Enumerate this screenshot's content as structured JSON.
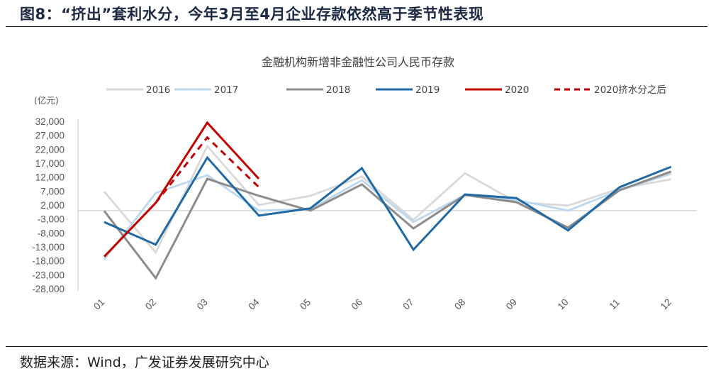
{
  "figure": {
    "title": "图8：“挤出”套利水分，今年3月至4月企业存款依然高于季节性表现",
    "source": "数据来源：Wind，广发证券发展研究中心"
  },
  "chart_data": {
    "type": "line",
    "title": "金融机构新增非金融性公司人民币存款",
    "ylabel": "(亿元)",
    "xlabel": "",
    "categories": [
      "01",
      "02",
      "03",
      "04",
      "05",
      "06",
      "07",
      "08",
      "09",
      "10",
      "11",
      "12"
    ],
    "yticks": [
      32000,
      27000,
      22000,
      17000,
      12000,
      7000,
      2000,
      -3000,
      -8000,
      -13000,
      -18000,
      -23000,
      -28000
    ],
    "ytick_labels": [
      "32,000",
      "27,000",
      "22,000",
      "17,000",
      "12,000",
      "7,000",
      "2,000",
      "-3,000",
      "-8,000",
      "-13,000",
      "-18,000",
      "-23,000",
      "-28,000"
    ],
    "ylim": [
      -28000,
      32000
    ],
    "grid": false,
    "zero_line": true,
    "legend_position": "top",
    "series": [
      {
        "name": "2016",
        "color": "#d9d9d9",
        "dash": false,
        "values": [
          6800,
          -15000,
          23100,
          2000,
          5300,
          12200,
          -3300,
          13400,
          3000,
          1800,
          7900,
          11200
        ]
      },
      {
        "name": "2017",
        "color": "#bdd7ee",
        "dash": false,
        "values": [
          -17500,
          6300,
          12700,
          0,
          500,
          10900,
          -4100,
          5600,
          3800,
          0,
          7300,
          13200
        ]
      },
      {
        "name": "2018",
        "color": "#8c8c8c",
        "dash": false,
        "values": [
          -100,
          -24200,
          11400,
          5300,
          0,
          9400,
          -6400,
          5600,
          3000,
          -6100,
          7300,
          14000
        ]
      },
      {
        "name": "2019",
        "color": "#1f6aa5",
        "dash": false,
        "values": [
          -4100,
          -12200,
          19000,
          -1800,
          800,
          15200,
          -14000,
          5800,
          4500,
          -7100,
          8400,
          15700
        ]
      },
      {
        "name": "2020",
        "color": "#c00000",
        "dash": false,
        "values": [
          -16500,
          2800,
          31500,
          11400,
          null,
          null,
          null,
          null,
          null,
          null,
          null,
          null
        ]
      },
      {
        "name": "2020挤水分之后",
        "color": "#c00000",
        "dash": true,
        "values": [
          null,
          2800,
          26200,
          8400,
          null,
          null,
          null,
          null,
          null,
          null,
          null,
          null
        ]
      }
    ]
  }
}
